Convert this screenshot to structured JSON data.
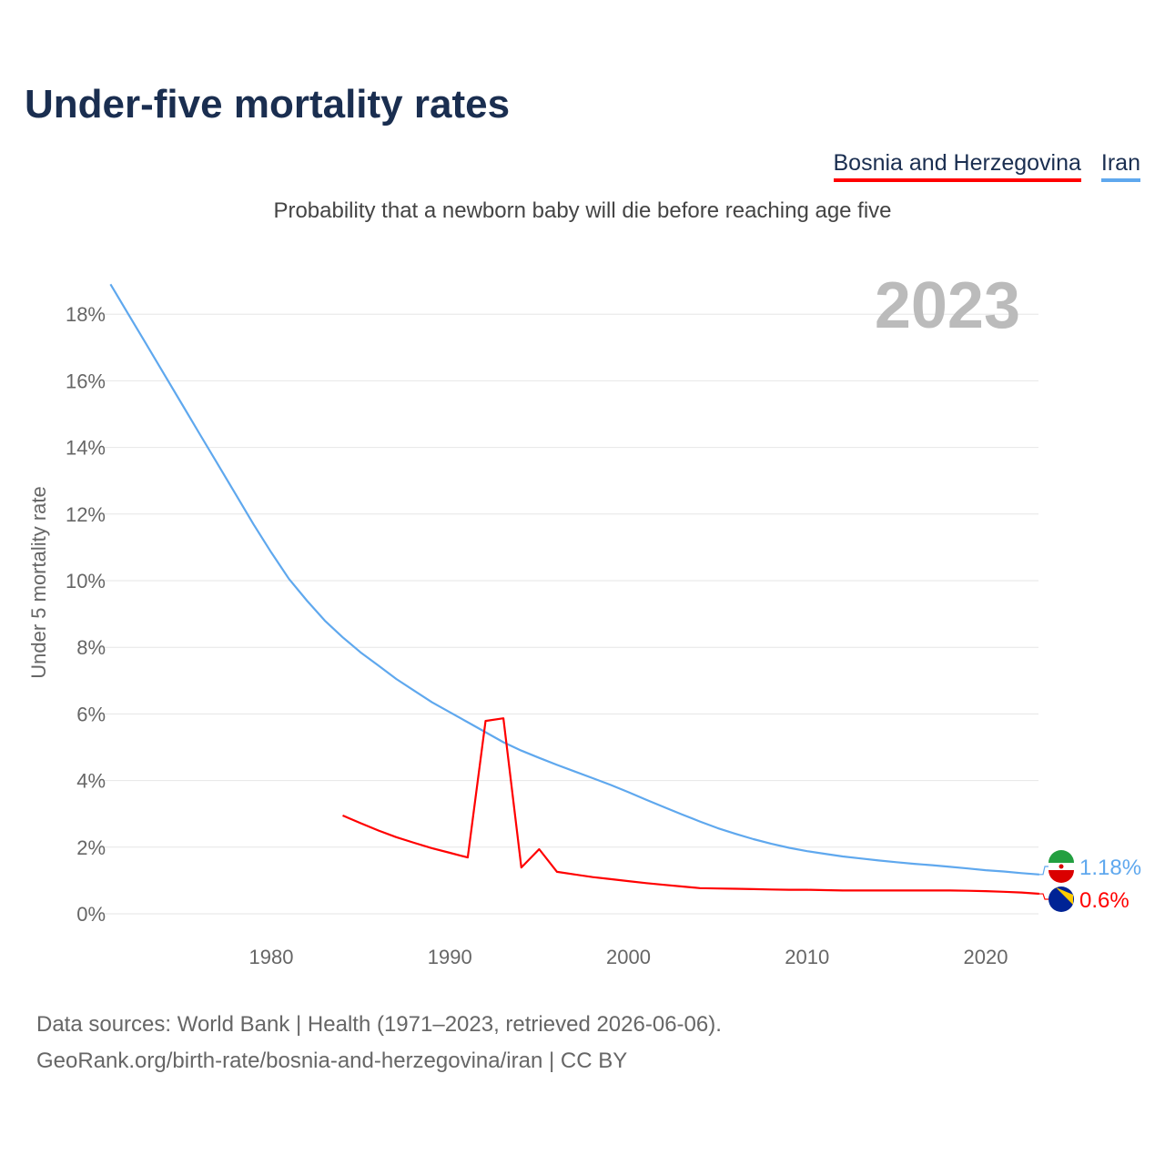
{
  "title": "Under-five mortality rates",
  "subtitle": "Probability that a newborn baby will die before reaching age five",
  "legend": [
    "Bosnia and Herzegovina",
    "Iran"
  ],
  "year_label": "2023",
  "sources": [
    "Data sources: World Bank | Health (1971–2023, retrieved 2026-06-06).",
    "GeoRank.org/birth-rate/bosnia-and-herzegovina/iran | CC BY"
  ],
  "chart_data": {
    "type": "line",
    "ylabel": "Under 5 mortality rate",
    "ylim": [
      0,
      18
    ],
    "xlim": [
      1971,
      2023
    ],
    "yticks": [
      "0%",
      "2%",
      "4%",
      "6%",
      "8%",
      "10%",
      "12%",
      "14%",
      "16%",
      "18%"
    ],
    "xticks": [
      "1980",
      "1990",
      "2000",
      "2010",
      "2020"
    ],
    "grid": true,
    "series": [
      {
        "name": "Iran",
        "color": "#5fa8ee",
        "end_label": "1.18%",
        "start": 1971,
        "values": [
          18.9,
          18.0,
          17.1,
          16.2,
          15.3,
          14.4,
          13.5,
          12.6,
          11.7,
          10.85,
          10.05,
          9.4,
          8.8,
          8.3,
          7.85,
          7.45,
          7.05,
          6.7,
          6.35,
          6.05,
          5.75,
          5.45,
          5.15,
          4.9,
          4.68,
          4.47,
          4.27,
          4.07,
          3.87,
          3.65,
          3.42,
          3.2,
          2.98,
          2.77,
          2.57,
          2.4,
          2.24,
          2.1,
          1.98,
          1.88,
          1.8,
          1.72,
          1.66,
          1.6,
          1.55,
          1.5,
          1.46,
          1.41,
          1.36,
          1.31,
          1.27,
          1.22,
          1.18
        ]
      },
      {
        "name": "Bosnia and Herzegovina",
        "color": "#ff0000",
        "end_label": "0.6%",
        "start": 1984,
        "values": [
          2.95,
          2.72,
          2.5,
          2.3,
          2.13,
          1.97,
          1.83,
          1.69,
          5.79,
          5.87,
          1.39,
          1.94,
          1.26,
          1.18,
          1.1,
          1.04,
          0.98,
          0.92,
          0.87,
          0.82,
          0.77,
          0.76,
          0.75,
          0.74,
          0.73,
          0.72,
          0.72,
          0.71,
          0.7,
          0.7,
          0.7,
          0.7,
          0.7,
          0.7,
          0.7,
          0.69,
          0.68,
          0.66,
          0.64,
          0.6
        ]
      }
    ]
  }
}
